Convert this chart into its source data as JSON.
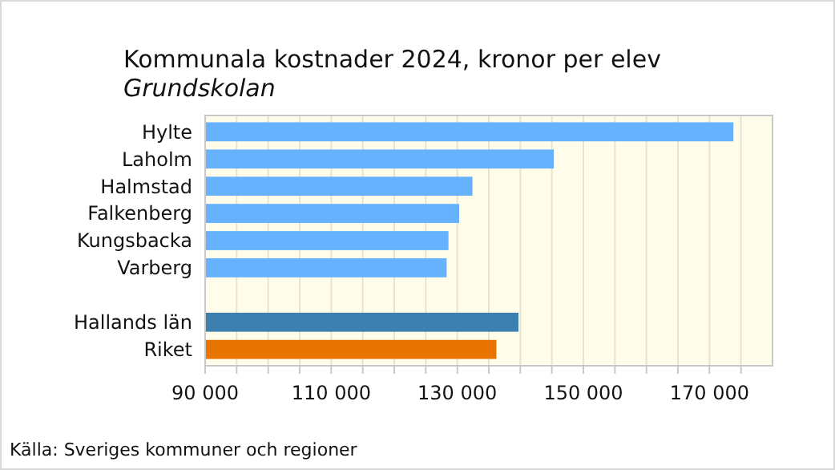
{
  "chart_data": {
    "type": "bar",
    "orientation": "horizontal",
    "title": "Kommunala kostnader 2024, kronor per elev",
    "subtitle": "Grundskolan",
    "categories": [
      "Hylte",
      "Laholm",
      "Halmstad",
      "Falkenberg",
      "Kungsbacka",
      "Varberg",
      null,
      "Hallands län",
      "Riket"
    ],
    "values": [
      173800,
      145300,
      132400,
      130300,
      128600,
      128300,
      null,
      139700,
      136200
    ],
    "colors": [
      "#66b2ff",
      "#66b2ff",
      "#66b2ff",
      "#66b2ff",
      "#66b2ff",
      "#66b2ff",
      null,
      "#3d80b0",
      "#e87500"
    ],
    "xlim": [
      90000,
      180000
    ],
    "xticks": [
      {
        "value": 90000,
        "label": "90 000"
      },
      {
        "value": 95000,
        "label": null
      },
      {
        "value": 100000,
        "label": null
      },
      {
        "value": 105000,
        "label": null
      },
      {
        "value": 110000,
        "label": "110 000"
      },
      {
        "value": 115000,
        "label": null
      },
      {
        "value": 120000,
        "label": null
      },
      {
        "value": 125000,
        "label": null
      },
      {
        "value": 130000,
        "label": "130 000"
      },
      {
        "value": 135000,
        "label": null
      },
      {
        "value": 140000,
        "label": null
      },
      {
        "value": 145000,
        "label": null
      },
      {
        "value": 150000,
        "label": "150 000"
      },
      {
        "value": 155000,
        "label": null
      },
      {
        "value": 160000,
        "label": null
      },
      {
        "value": 165000,
        "label": null
      },
      {
        "value": 170000,
        "label": "170 000"
      },
      {
        "value": 175000,
        "label": null
      }
    ],
    "grid": "x",
    "annotations": [
      "Källa: Sveriges kommuner och regioner"
    ]
  }
}
